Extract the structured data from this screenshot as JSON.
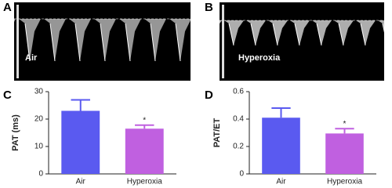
{
  "images": [
    {
      "panel_label": "A",
      "caption": "Air"
    },
    {
      "panel_label": "B",
      "caption": "Hyperoxia"
    }
  ],
  "chart_data": [
    {
      "type": "bar",
      "panel_label": "C",
      "ylabel": "PAT (ms)",
      "categories": [
        "Air",
        "Hyperoxia"
      ],
      "values": [
        23,
        16.5
      ],
      "errors": [
        4,
        1.3
      ],
      "colors": [
        "#5a5af0",
        "#c060e0"
      ],
      "significance": [
        null,
        "*"
      ],
      "ylim": [
        0,
        30
      ],
      "yticks": [
        0,
        10,
        20,
        30
      ]
    },
    {
      "type": "bar",
      "panel_label": "D",
      "ylabel": "PAT/ET",
      "categories": [
        "Air",
        "Hyperoxia"
      ],
      "values": [
        0.41,
        0.295
      ],
      "errors": [
        0.07,
        0.035
      ],
      "colors": [
        "#5a5af0",
        "#c060e0"
      ],
      "significance": [
        null,
        "*"
      ],
      "ylim": [
        0,
        0.6
      ],
      "yticks": [
        0,
        0.2,
        0.4,
        0.6
      ]
    }
  ]
}
